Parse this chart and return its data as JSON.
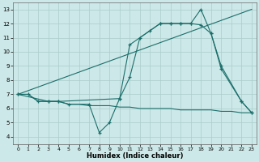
{
  "xlabel": "Humidex (Indice chaleur)",
  "background_color": "#cde8e8",
  "grid_color": "#aacccc",
  "line_color": "#1a6e6a",
  "xlim": [
    -0.5,
    23.5
  ],
  "ylim": [
    3.5,
    13.5
  ],
  "xticks": [
    0,
    1,
    2,
    3,
    4,
    5,
    6,
    7,
    8,
    9,
    10,
    11,
    12,
    13,
    14,
    15,
    16,
    17,
    18,
    19,
    20,
    21,
    22,
    23
  ],
  "yticks": [
    4,
    5,
    6,
    7,
    8,
    9,
    10,
    11,
    12,
    13
  ],
  "series": [
    {
      "x": [
        0,
        1,
        2,
        3,
        4,
        5,
        6,
        7,
        8,
        9,
        10,
        11,
        12,
        13,
        14,
        15,
        16,
        17,
        18,
        19,
        20,
        21,
        22,
        23
      ],
      "y": [
        7,
        7,
        6.5,
        6.5,
        6.5,
        6.3,
        6.3,
        6.2,
        6.2,
        6.2,
        6.1,
        6.1,
        6.0,
        6.0,
        6.0,
        6.0,
        5.9,
        5.9,
        5.9,
        5.9,
        5.8,
        5.8,
        5.7,
        5.7
      ],
      "has_marker": false
    },
    {
      "x": [
        0,
        23
      ],
      "y": [
        7,
        13
      ],
      "has_marker": false
    },
    {
      "x": [
        0,
        1,
        2,
        3,
        4,
        10,
        11,
        14,
        15,
        16,
        17,
        18,
        19,
        20,
        22,
        23
      ],
      "y": [
        7,
        7,
        6.5,
        6.5,
        6.5,
        6.7,
        10.5,
        12.0,
        12.0,
        12.0,
        12.0,
        11.9,
        11.3,
        8.8,
        6.5,
        5.7
      ],
      "has_marker": true
    },
    {
      "x": [
        0,
        3,
        4,
        5,
        7,
        8,
        9,
        10,
        11,
        12,
        13,
        14,
        15,
        16,
        17,
        18,
        19,
        20,
        22,
        23
      ],
      "y": [
        7,
        6.5,
        6.5,
        6.3,
        6.3,
        4.3,
        5.0,
        6.7,
        8.2,
        11.0,
        11.5,
        12.0,
        12.0,
        12.0,
        12.0,
        13.0,
        11.3,
        9.0,
        6.5,
        5.7
      ],
      "has_marker": true
    }
  ]
}
